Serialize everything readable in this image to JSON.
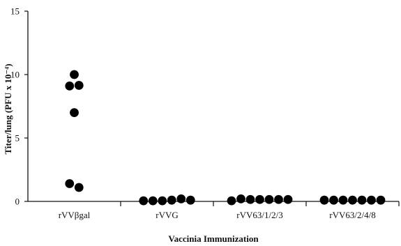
{
  "chart_data": {
    "type": "scatter",
    "title": "",
    "xlabel": "Vaccinia Immunization",
    "ylabel": "Titer/lung (PFU x 10⁻⁴)",
    "ylim": [
      0,
      15
    ],
    "yticks": [
      0,
      5,
      10,
      15
    ],
    "grid": false,
    "legend": "none",
    "marker_color": "#000000",
    "categories": [
      "rVVβgal",
      "rVVG",
      "rVV63/1/2/3",
      "rVV63/2/4/8"
    ],
    "groups": [
      {
        "category": "rVVβgal",
        "points": [
          {
            "offset": 0.0,
            "value": 10.0
          },
          {
            "offset": -0.5,
            "value": 9.1
          },
          {
            "offset": 0.5,
            "value": 9.15
          },
          {
            "offset": 0.0,
            "value": 7.0
          },
          {
            "offset": -0.5,
            "value": 1.4
          },
          {
            "offset": 0.5,
            "value": 1.1
          }
        ]
      },
      {
        "category": "rVVG",
        "points": [
          {
            "offset": -2.5,
            "value": 0.05
          },
          {
            "offset": -1.5,
            "value": 0.05
          },
          {
            "offset": -0.5,
            "value": 0.05
          },
          {
            "offset": 0.5,
            "value": 0.1
          },
          {
            "offset": 1.5,
            "value": 0.2
          },
          {
            "offset": 2.5,
            "value": 0.1
          }
        ]
      },
      {
        "category": "rVV63/1/2/3",
        "points": [
          {
            "offset": -3.0,
            "value": 0.05
          },
          {
            "offset": -2.0,
            "value": 0.2
          },
          {
            "offset": -1.0,
            "value": 0.15
          },
          {
            "offset": 0.0,
            "value": 0.15
          },
          {
            "offset": 1.0,
            "value": 0.15
          },
          {
            "offset": 2.0,
            "value": 0.15
          },
          {
            "offset": 3.0,
            "value": 0.15
          }
        ]
      },
      {
        "category": "rVV63/2/4/8",
        "points": [
          {
            "offset": -3.0,
            "value": 0.1
          },
          {
            "offset": -2.0,
            "value": 0.1
          },
          {
            "offset": -1.0,
            "value": 0.1
          },
          {
            "offset": 0.0,
            "value": 0.1
          },
          {
            "offset": 1.0,
            "value": 0.1
          },
          {
            "offset": 2.0,
            "value": 0.1
          },
          {
            "offset": 3.0,
            "value": 0.1
          }
        ]
      }
    ]
  }
}
